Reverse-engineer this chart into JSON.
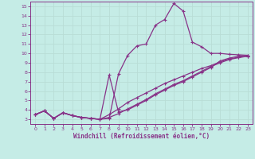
{
  "xlabel": "Windchill (Refroidissement éolien,°C)",
  "xlim": [
    -0.5,
    23.5
  ],
  "ylim": [
    2.5,
    15.5
  ],
  "xticks": [
    0,
    1,
    2,
    3,
    4,
    5,
    6,
    7,
    8,
    9,
    10,
    11,
    12,
    13,
    14,
    15,
    16,
    17,
    18,
    19,
    20,
    21,
    22,
    23
  ],
  "yticks": [
    3,
    4,
    5,
    6,
    7,
    8,
    9,
    10,
    11,
    12,
    13,
    14,
    15
  ],
  "bg_color": "#c5ece6",
  "grid_color": "#aaddcc",
  "line_color": "#883388",
  "curves": [
    {
      "x": [
        0,
        1,
        2,
        3,
        4,
        5,
        6,
        7,
        8,
        9,
        10,
        11,
        12,
        13,
        14,
        15,
        16,
        17,
        18,
        19,
        20,
        21,
        22,
        23
      ],
      "y": [
        3.5,
        3.9,
        3.1,
        3.7,
        3.4,
        3.2,
        3.1,
        3.0,
        3.1,
        7.8,
        9.8,
        10.8,
        11.0,
        13.0,
        13.6,
        15.3,
        14.5,
        11.2,
        10.7,
        10.0,
        10.0,
        9.9,
        9.85,
        9.8
      ]
    },
    {
      "x": [
        0,
        1,
        2,
        3,
        4,
        5,
        6,
        7,
        8,
        9,
        10,
        11,
        12,
        13,
        14,
        15,
        16,
        17,
        18,
        19,
        20,
        21,
        22,
        23
      ],
      "y": [
        3.5,
        3.9,
        3.1,
        3.7,
        3.4,
        3.2,
        3.1,
        3.0,
        7.7,
        3.8,
        4.0,
        4.5,
        5.0,
        5.6,
        6.1,
        6.6,
        7.0,
        7.5,
        8.0,
        8.5,
        9.2,
        9.5,
        9.7,
        9.8
      ]
    },
    {
      "x": [
        0,
        1,
        2,
        3,
        4,
        5,
        6,
        7,
        8,
        9,
        10,
        11,
        12,
        13,
        14,
        15,
        16,
        17,
        18,
        19,
        20,
        21,
        22,
        23
      ],
      "y": [
        3.5,
        3.9,
        3.1,
        3.7,
        3.4,
        3.2,
        3.1,
        3.0,
        3.5,
        4.1,
        4.8,
        5.3,
        5.8,
        6.3,
        6.8,
        7.2,
        7.6,
        8.0,
        8.4,
        8.7,
        9.1,
        9.4,
        9.6,
        9.7
      ]
    },
    {
      "x": [
        0,
        1,
        2,
        3,
        4,
        5,
        6,
        7,
        8,
        9,
        10,
        11,
        12,
        13,
        14,
        15,
        16,
        17,
        18,
        19,
        20,
        21,
        22,
        23
      ],
      "y": [
        3.5,
        3.9,
        3.1,
        3.7,
        3.4,
        3.2,
        3.1,
        3.0,
        3.2,
        3.6,
        4.1,
        4.6,
        5.1,
        5.7,
        6.2,
        6.7,
        7.1,
        7.6,
        8.1,
        8.6,
        9.0,
        9.35,
        9.55,
        9.7
      ]
    }
  ]
}
